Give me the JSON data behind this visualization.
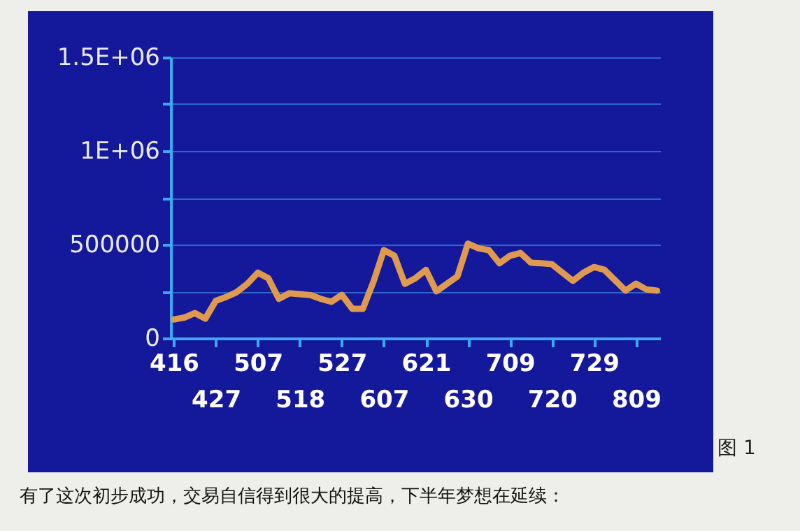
{
  "chart_data": {
    "type": "line",
    "categories": [
      "416",
      null,
      null,
      null,
      "427",
      null,
      null,
      null,
      "507",
      null,
      null,
      null,
      "518",
      null,
      null,
      null,
      "527",
      null,
      null,
      null,
      "607",
      null,
      null,
      null,
      "621",
      null,
      null,
      null,
      "630",
      null,
      null,
      null,
      "709",
      null,
      null,
      null,
      "720",
      null,
      null,
      null,
      "729",
      null,
      null,
      null,
      "809",
      null,
      null
    ],
    "series": [
      {
        "color": "#e09a50",
        "values": [
          100000,
          110000,
          134000,
          104000,
          200000,
          220000,
          246000,
          290000,
          350000,
          320000,
          210000,
          240000,
          235000,
          230000,
          210000,
          194000,
          231000,
          157000,
          157000,
          300000,
          470000,
          440000,
          290000,
          320000,
          365000,
          250000,
          290000,
          330000,
          505000,
          480000,
          470000,
          400000,
          440000,
          455000,
          403000,
          400000,
          395000,
          350000,
          306000,
          350000,
          380000,
          365000,
          310000,
          254000,
          291000,
          260000,
          254000
        ]
      }
    ],
    "ylim": [
      0,
      1500000
    ],
    "yticks": [
      0,
      {
        "value": 250000,
        "label": null
      },
      500000,
      {
        "value": 750000,
        "label": null
      },
      {
        "value": 1000000,
        "label": "1E+06"
      },
      {
        "value": 1250000,
        "label": null
      },
      {
        "value": 1500000,
        "label": "1.5E+06"
      }
    ],
    "grid": "y",
    "marker": "none",
    "line_style": "solid",
    "annotations": [
      "图 1",
      "有了这次初步成功，交易自信得到很大的提高，下半年梦想在延续："
    ]
  }
}
